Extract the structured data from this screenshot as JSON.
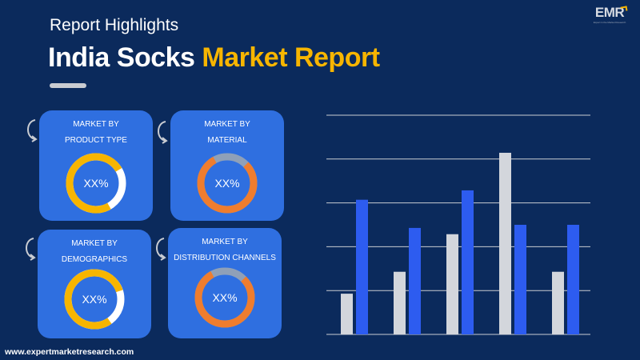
{
  "header": {
    "subtitle": "Report Highlights",
    "title_part1": "India Socks",
    "title_part2": "Market Report"
  },
  "logo": {
    "text": "EMR",
    "tagline": "Expert in the Market Research"
  },
  "cards": [
    {
      "label_line1": "MARKET BY",
      "label_line2": "PRODUCT TYPE",
      "value": "XX%",
      "ring_color": "#f7b500"
    },
    {
      "label_line1": "MARKET BY",
      "label_line2": "MATERIAL",
      "value": "XX%",
      "ring_color": "#ef7d2e"
    },
    {
      "label_line1": "MARKET BY",
      "label_line2": "DEMOGRAPHICS",
      "value": "XX%",
      "ring_color": "#f7b500"
    },
    {
      "label_line1": "MARKET BY",
      "label_line2": "DISTRIBUTION CHANNELS",
      "value": "XX%",
      "ring_color": "#ef7d2e"
    }
  ],
  "footer": {
    "url": "www.expertmarketresearch.com"
  },
  "colors": {
    "background": "#0b2a5c",
    "card": "#2f6fe0",
    "accent_yellow": "#f7b500",
    "accent_orange": "#ef7d2e",
    "series_gray": "#d3d6dc",
    "series_blue": "#2d5cf0"
  },
  "chart_data": {
    "type": "bar",
    "categories": [
      "",
      "",
      "",
      "",
      ""
    ],
    "series": [
      {
        "values": [
          1.3,
          2.0,
          3.2,
          5.8,
          2.0
        ]
      },
      {
        "values": [
          4.3,
          3.4,
          4.6,
          3.5,
          3.5
        ]
      }
    ],
    "ylim": [
      0,
      7
    ],
    "grid": true,
    "title": "",
    "xlabel": "",
    "ylabel": ""
  }
}
